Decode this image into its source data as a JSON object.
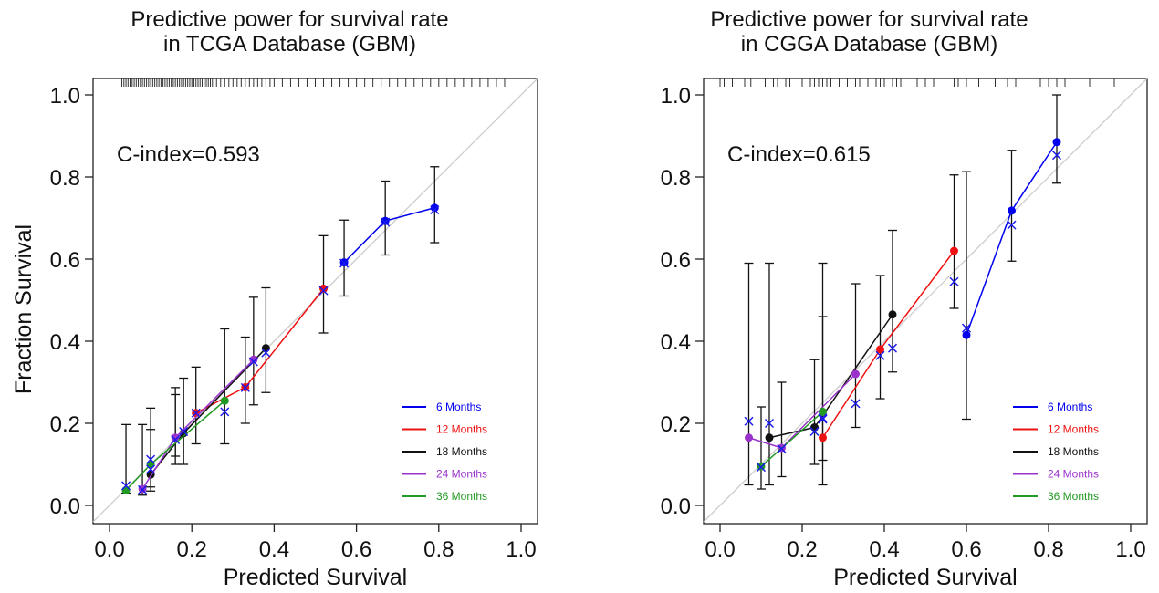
{
  "chart_data": [
    {
      "type": "scatter",
      "title_line1": "Predictive power for survival rate",
      "title_line2": "in TCGA Database (GBM)",
      "xlabel": "Predicted Survival",
      "ylabel": "Fraction Survival",
      "xlim": [
        0.0,
        1.0
      ],
      "ylim": [
        0.0,
        1.0
      ],
      "xticks": [
        "0.0",
        "0.2",
        "0.4",
        "0.6",
        "0.8",
        "1.0"
      ],
      "yticks": [
        "0.0",
        "0.2",
        "0.4",
        "0.6",
        "0.8",
        "1.0"
      ],
      "annotation": "C-index=0.593",
      "legend_position": "bottom-right",
      "diagonal": true,
      "rug": [
        0.03,
        0.035,
        0.04,
        0.045,
        0.05,
        0.055,
        0.06,
        0.065,
        0.07,
        0.075,
        0.08,
        0.085,
        0.09,
        0.095,
        0.1,
        0.105,
        0.11,
        0.115,
        0.12,
        0.125,
        0.13,
        0.135,
        0.14,
        0.145,
        0.15,
        0.155,
        0.16,
        0.165,
        0.17,
        0.175,
        0.18,
        0.185,
        0.19,
        0.195,
        0.2,
        0.205,
        0.21,
        0.215,
        0.22,
        0.225,
        0.23,
        0.235,
        0.24,
        0.245,
        0.25,
        0.26,
        0.27,
        0.28,
        0.29,
        0.3,
        0.31,
        0.32,
        0.33,
        0.34,
        0.35,
        0.36,
        0.37,
        0.38,
        0.39,
        0.4,
        0.42,
        0.44,
        0.46,
        0.48,
        0.5,
        0.52,
        0.54,
        0.56,
        0.58,
        0.6,
        0.62,
        0.64,
        0.66,
        0.68,
        0.7,
        0.72,
        0.74,
        0.76,
        0.78,
        0.8,
        0.82,
        0.84,
        0.86,
        0.88,
        0.9,
        0.92,
        0.94,
        0.96
      ],
      "series": [
        {
          "name": "6 Months",
          "color": "#0000ee",
          "points": [
            [
              0.57,
              0.592
            ],
            [
              0.67,
              0.693
            ],
            [
              0.79,
              0.725
            ]
          ],
          "crosses": [
            [
              0.57,
              0.59
            ],
            [
              0.67,
              0.69
            ],
            [
              0.79,
              0.72
            ]
          ]
        },
        {
          "name": "12 Months",
          "color": "#ee1111",
          "points": [
            [
              0.21,
              0.225
            ],
            [
              0.33,
              0.288
            ],
            [
              0.52,
              0.528
            ]
          ],
          "crosses": [
            [
              0.21,
              0.225
            ],
            [
              0.33,
              0.287
            ],
            [
              0.52,
              0.523
            ]
          ]
        },
        {
          "name": "18 Months",
          "color": "#111111",
          "points": [
            [
              0.1,
              0.075
            ],
            [
              0.18,
              0.176
            ],
            [
              0.38,
              0.383
            ]
          ],
          "crosses": [
            [
              0.1,
              0.088
            ],
            [
              0.18,
              0.18
            ],
            [
              0.38,
              0.372
            ]
          ]
        },
        {
          "name": "24 Months",
          "color": "#9933cc",
          "points": [
            [
              0.08,
              0.04
            ],
            [
              0.16,
              0.165
            ],
            [
              0.35,
              0.355
            ]
          ],
          "crosses": [
            [
              0.08,
              0.038
            ],
            [
              0.16,
              0.16
            ],
            [
              0.35,
              0.35
            ]
          ]
        },
        {
          "name": "36 Months",
          "color": "#229922",
          "points": [
            [
              0.04,
              0.037
            ],
            [
              0.1,
              0.1
            ],
            [
              0.28,
              0.255
            ]
          ],
          "crosses": [
            [
              0.04,
              0.048
            ],
            [
              0.1,
              0.112
            ],
            [
              0.28,
              0.228
            ]
          ]
        }
      ],
      "error_bars": [
        [
          0.04,
          0.03,
          0.197
        ],
        [
          0.08,
          0.025,
          0.197
        ],
        [
          0.1,
          0.035,
          0.185
        ],
        [
          0.1,
          0.045,
          0.237
        ],
        [
          0.16,
          0.1,
          0.27
        ],
        [
          0.16,
          0.12,
          0.287
        ],
        [
          0.18,
          0.1,
          0.31
        ],
        [
          0.21,
          0.15,
          0.337
        ],
        [
          0.28,
          0.15,
          0.43
        ],
        [
          0.33,
          0.2,
          0.41
        ],
        [
          0.35,
          0.245,
          0.507
        ],
        [
          0.38,
          0.275,
          0.53
        ],
        [
          0.52,
          0.42,
          0.657
        ],
        [
          0.57,
          0.51,
          0.695
        ],
        [
          0.67,
          0.61,
          0.79
        ],
        [
          0.79,
          0.64,
          0.825
        ]
      ]
    },
    {
      "type": "scatter",
      "title_line1": "Predictive power for survival rate",
      "title_line2": "in CGGA Database (GBM)",
      "xlabel": "Predicted Survival",
      "ylabel": "Fraction Survival",
      "xlim": [
        0.0,
        1.0
      ],
      "ylim": [
        0.0,
        1.0
      ],
      "xticks": [
        "0.0",
        "0.2",
        "0.4",
        "0.6",
        "0.8",
        "1.0"
      ],
      "yticks": [
        "0.0",
        "0.2",
        "0.4",
        "0.6",
        "0.8",
        "1.0"
      ],
      "annotation": "C-index=0.615",
      "legend_position": "bottom-right",
      "diagonal": true,
      "rug": [
        0.0,
        0.01,
        0.03,
        0.06,
        0.075,
        0.09,
        0.11,
        0.13,
        0.14,
        0.16,
        0.17,
        0.2,
        0.22,
        0.23,
        0.24,
        0.25,
        0.26,
        0.27,
        0.29,
        0.31,
        0.33,
        0.34,
        0.36,
        0.38,
        0.39,
        0.4,
        0.42,
        0.43,
        0.44,
        0.48,
        0.5,
        0.52,
        0.57,
        0.58,
        0.6,
        0.63,
        0.67,
        0.7,
        0.72,
        0.78,
        0.8,
        0.82,
        0.84,
        0.9,
        0.93,
        0.96
      ],
      "series": [
        {
          "name": "6 Months",
          "color": "#0000ee",
          "points": [
            [
              0.6,
              0.415
            ],
            [
              0.71,
              0.718
            ],
            [
              0.82,
              0.885
            ]
          ],
          "crosses": [
            [
              0.57,
              0.545
            ],
            [
              0.6,
              0.432
            ],
            [
              0.71,
              0.683
            ],
            [
              0.82,
              0.853
            ]
          ]
        },
        {
          "name": "12 Months",
          "color": "#ee1111",
          "points": [
            [
              0.25,
              0.165
            ],
            [
              0.39,
              0.38
            ],
            [
              0.57,
              0.62
            ]
          ],
          "crosses": [
            [
              0.25,
              0.21
            ],
            [
              0.39,
              0.365
            ]
          ]
        },
        {
          "name": "18 Months",
          "color": "#111111",
          "points": [
            [
              0.12,
              0.165
            ],
            [
              0.23,
              0.19
            ],
            [
              0.42,
              0.465
            ]
          ],
          "crosses": [
            [
              0.12,
              0.2
            ],
            [
              0.23,
              0.18
            ],
            [
              0.42,
              0.383
            ]
          ]
        },
        {
          "name": "24 Months",
          "color": "#9933cc",
          "points": [
            [
              0.07,
              0.165
            ],
            [
              0.15,
              0.14
            ],
            [
              0.33,
              0.32
            ]
          ],
          "crosses": [
            [
              0.07,
              0.205
            ],
            [
              0.15,
              0.138
            ],
            [
              0.33,
              0.248
            ]
          ]
        },
        {
          "name": "36 Months",
          "color": "#229922",
          "points": [
            [
              0.1,
              0.095
            ],
            [
              0.25,
              0.228
            ]
          ],
          "crosses": [
            [
              0.1,
              0.093
            ],
            [
              0.25,
              0.213
            ]
          ]
        }
      ],
      "error_bars": [
        [
          0.07,
          0.05,
          0.59
        ],
        [
          0.1,
          0.04,
          0.24
        ],
        [
          0.12,
          0.05,
          0.59
        ],
        [
          0.15,
          0.07,
          0.3
        ],
        [
          0.23,
          0.1,
          0.355
        ],
        [
          0.25,
          0.05,
          0.59
        ],
        [
          0.25,
          0.11,
          0.46
        ],
        [
          0.33,
          0.19,
          0.54
        ],
        [
          0.39,
          0.26,
          0.56
        ],
        [
          0.42,
          0.325,
          0.67
        ],
        [
          0.57,
          0.48,
          0.805
        ],
        [
          0.6,
          0.21,
          0.813
        ],
        [
          0.71,
          0.595,
          0.865
        ],
        [
          0.82,
          0.785,
          1.0
        ]
      ]
    }
  ]
}
